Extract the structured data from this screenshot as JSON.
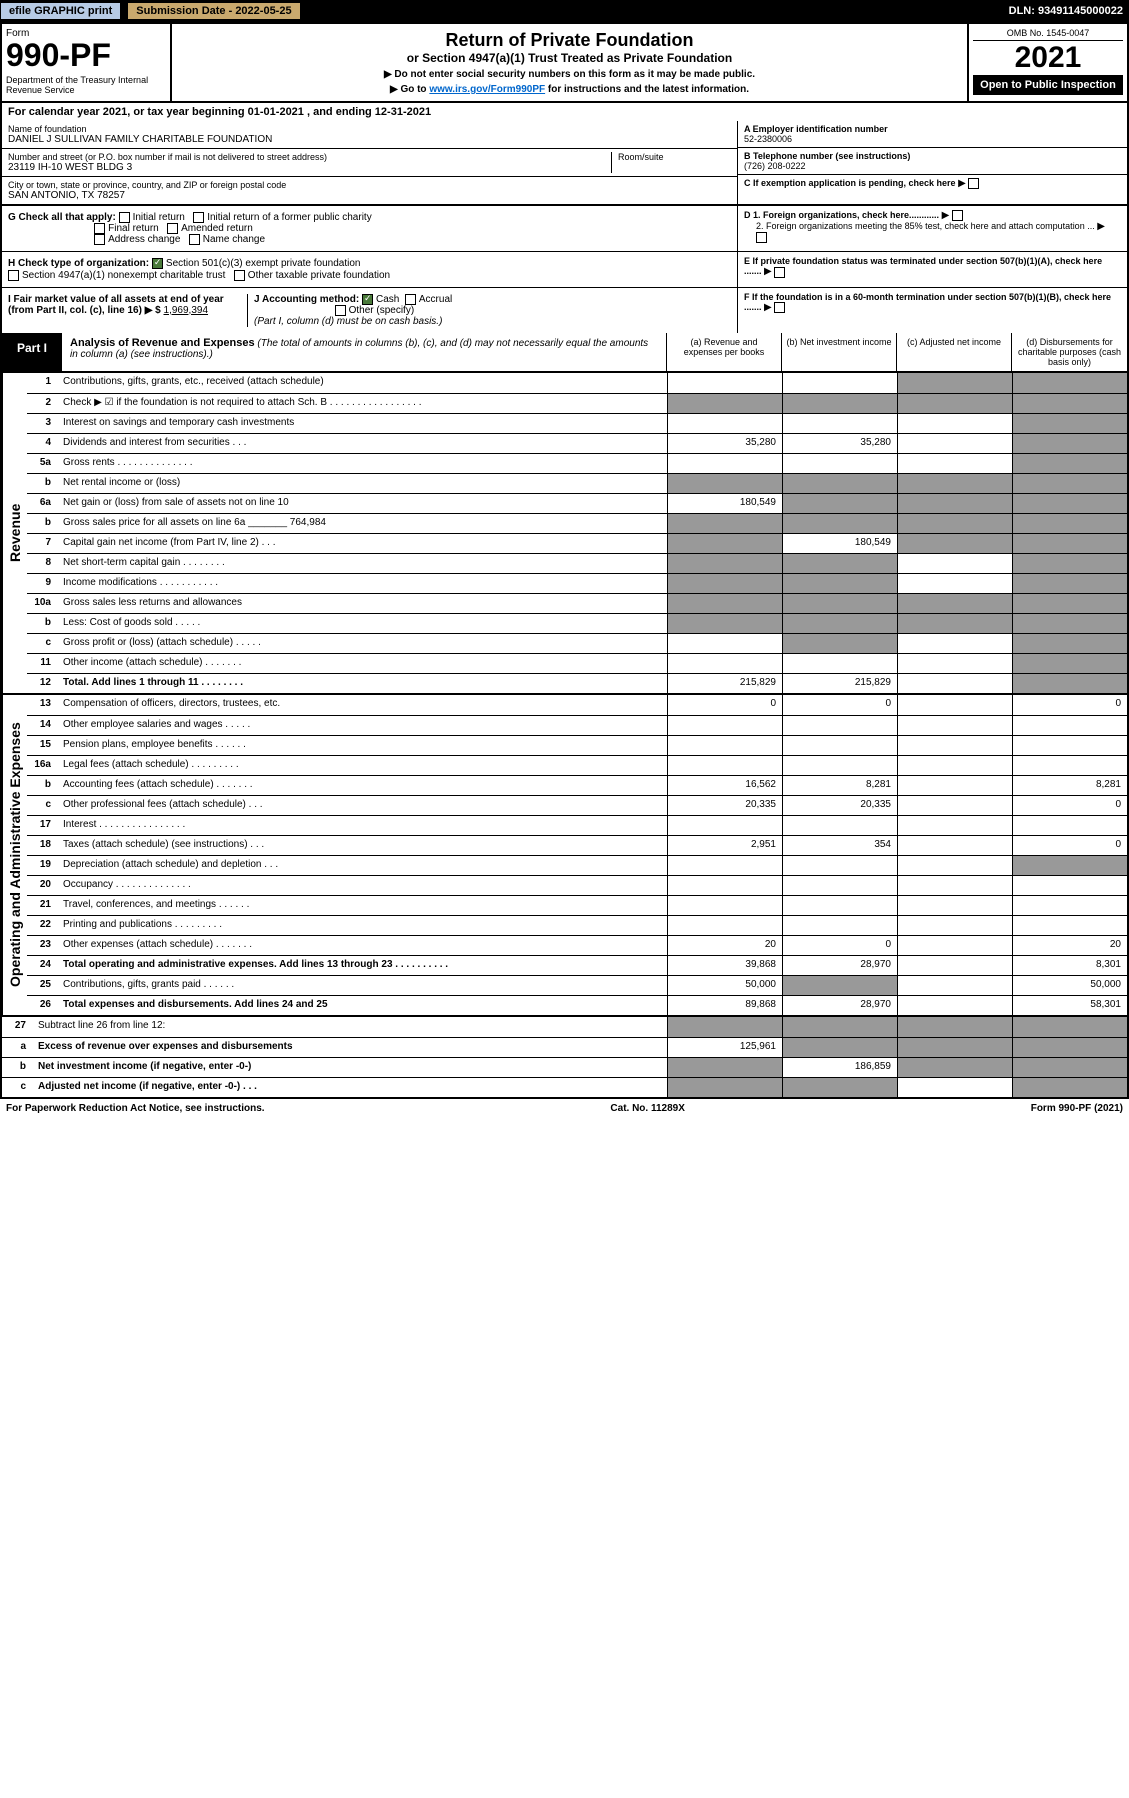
{
  "topbar": {
    "btn1": "efile GRAPHIC print",
    "btn2": "Submission Date - 2022-05-25",
    "dln": "DLN: 93491145000022"
  },
  "header": {
    "form": "Form",
    "formnum": "990-PF",
    "dept": "Department of the Treasury\nInternal Revenue Service",
    "title": "Return of Private Foundation",
    "subtitle": "or Section 4947(a)(1) Trust Treated as Private Foundation",
    "note1": "▶ Do not enter social security numbers on this form as it may be made public.",
    "note2": "▶ Go to ",
    "link": "www.irs.gov/Form990PF",
    "note3": " for instructions and the latest information.",
    "omb": "OMB No. 1545-0047",
    "year": "2021",
    "open": "Open to Public Inspection"
  },
  "cal": "For calendar year 2021, or tax year beginning 01-01-2021          , and ending 12-31-2021",
  "info": {
    "name_lbl": "Name of foundation",
    "name": "DANIEL J SULLIVAN FAMILY CHARITABLE FOUNDATION",
    "addr_lbl": "Number and street (or P.O. box number if mail is not delivered to street address)",
    "addr": "23119 IH-10 WEST BLDG 3",
    "room_lbl": "Room/suite",
    "city_lbl": "City or town, state or province, country, and ZIP or foreign postal code",
    "city": "SAN ANTONIO, TX  78257",
    "ein_lbl": "A Employer identification number",
    "ein": "52-2380006",
    "tel_lbl": "B Telephone number (see instructions)",
    "tel": "(726) 208-0222",
    "c": "C If exemption application is pending, check here",
    "d1": "D 1. Foreign organizations, check here............",
    "d2": "2. Foreign organizations meeting the 85% test, check here and attach computation ...",
    "e": "E If private foundation status was terminated under section 507(b)(1)(A), check here .......",
    "f": "F If the foundation is in a 60-month termination under section 507(b)(1)(B), check here ......."
  },
  "g": {
    "lbl": "G Check all that apply:",
    "o1": "Initial return",
    "o2": "Initial return of a former public charity",
    "o3": "Final return",
    "o4": "Amended return",
    "o5": "Address change",
    "o6": "Name change"
  },
  "h": {
    "lbl": "H Check type of organization:",
    "o1": "Section 501(c)(3) exempt private foundation",
    "o2": "Section 4947(a)(1) nonexempt charitable trust",
    "o3": "Other taxable private foundation"
  },
  "i": {
    "lbl": "I Fair market value of all assets at end of year (from Part II, col. (c), line 16) ▶ $",
    "val": "1,969,394"
  },
  "j": {
    "lbl": "J Accounting method:",
    "o1": "Cash",
    "o2": "Accrual",
    "o3": "Other (specify)",
    "note": "(Part I, column (d) must be on cash basis.)"
  },
  "part1": {
    "lbl": "Part I",
    "title": "Analysis of Revenue and Expenses",
    "sub": "(The total of amounts in columns (b), (c), and (d) may not necessarily equal the amounts in column (a) (see instructions).)",
    "ca": "(a) Revenue and expenses per books",
    "cb": "(b) Net investment income",
    "cc": "(c) Adjusted net income",
    "cd": "(d) Disbursements for charitable purposes (cash basis only)"
  },
  "sidelbl": {
    "rev": "Revenue",
    "exp": "Operating and Administrative Expenses"
  },
  "rows": [
    {
      "n": "1",
      "d": "Contributions, gifts, grants, etc., received (attach schedule)",
      "a": "",
      "b": "",
      "c": "g",
      "dd": "g"
    },
    {
      "n": "2",
      "d": "Check ▶ ☑ if the foundation is not required to attach Sch. B    . . . . . . . . . . . . . . . . .",
      "a": "g",
      "b": "g",
      "c": "g",
      "dd": "g"
    },
    {
      "n": "3",
      "d": "Interest on savings and temporary cash investments",
      "a": "",
      "b": "",
      "c": "",
      "dd": "g"
    },
    {
      "n": "4",
      "d": "Dividends and interest from securities    . . .",
      "a": "35,280",
      "b": "35,280",
      "c": "",
      "dd": "g"
    },
    {
      "n": "5a",
      "d": "Gross rents    . . . . . . . . . . . . . .",
      "a": "",
      "b": "",
      "c": "",
      "dd": "g"
    },
    {
      "n": "b",
      "d": "Net rental income or (loss)",
      "a": "g",
      "b": "g",
      "c": "g",
      "dd": "g"
    },
    {
      "n": "6a",
      "d": "Net gain or (loss) from sale of assets not on line 10",
      "a": "180,549",
      "b": "g",
      "c": "g",
      "dd": "g"
    },
    {
      "n": "b",
      "d": "Gross sales price for all assets on line 6a _______ 764,984",
      "a": "g",
      "b": "g",
      "c": "g",
      "dd": "g"
    },
    {
      "n": "7",
      "d": "Capital gain net income (from Part IV, line 2)    . . .",
      "a": "g",
      "b": "180,549",
      "c": "g",
      "dd": "g"
    },
    {
      "n": "8",
      "d": "Net short-term capital gain    . . . . . . . .",
      "a": "g",
      "b": "g",
      "c": "",
      "dd": "g"
    },
    {
      "n": "9",
      "d": "Income modifications . . . . . . . . . . .",
      "a": "g",
      "b": "g",
      "c": "",
      "dd": "g"
    },
    {
      "n": "10a",
      "d": "Gross sales less returns and allowances",
      "a": "g",
      "b": "g",
      "c": "g",
      "dd": "g"
    },
    {
      "n": "b",
      "d": "Less: Cost of goods sold    . . . . .",
      "a": "g",
      "b": "g",
      "c": "g",
      "dd": "g"
    },
    {
      "n": "c",
      "d": "Gross profit or (loss) (attach schedule)    . . . . .",
      "a": "",
      "b": "g",
      "c": "",
      "dd": "g"
    },
    {
      "n": "11",
      "d": "Other income (attach schedule)    . . . . . . .",
      "a": "",
      "b": "",
      "c": "",
      "dd": "g"
    },
    {
      "n": "12",
      "d": "Total. Add lines 1 through 11    . . . . . . . .",
      "a": "215,829",
      "b": "215,829",
      "c": "",
      "dd": "g",
      "bold": true
    }
  ],
  "exprows": [
    {
      "n": "13",
      "d": "Compensation of officers, directors, trustees, etc.",
      "a": "0",
      "b": "0",
      "c": "",
      "dd": "0"
    },
    {
      "n": "14",
      "d": "Other employee salaries and wages    . . . . .",
      "a": "",
      "b": "",
      "c": "",
      "dd": ""
    },
    {
      "n": "15",
      "d": "Pension plans, employee benefits  . . . . . .",
      "a": "",
      "b": "",
      "c": "",
      "dd": ""
    },
    {
      "n": "16a",
      "d": "Legal fees (attach schedule) . . . . . . . . .",
      "a": "",
      "b": "",
      "c": "",
      "dd": ""
    },
    {
      "n": "b",
      "d": "Accounting fees (attach schedule) . . . . . . .",
      "a": "16,562",
      "b": "8,281",
      "c": "",
      "dd": "8,281"
    },
    {
      "n": "c",
      "d": "Other professional fees (attach schedule)    . . .",
      "a": "20,335",
      "b": "20,335",
      "c": "",
      "dd": "0"
    },
    {
      "n": "17",
      "d": "Interest . . . . . . . . . . . . . . . .",
      "a": "",
      "b": "",
      "c": "",
      "dd": ""
    },
    {
      "n": "18",
      "d": "Taxes (attach schedule) (see instructions)    . . .",
      "a": "2,951",
      "b": "354",
      "c": "",
      "dd": "0"
    },
    {
      "n": "19",
      "d": "Depreciation (attach schedule) and depletion    . . .",
      "a": "",
      "b": "",
      "c": "",
      "dd": "g"
    },
    {
      "n": "20",
      "d": "Occupancy . . . . . . . . . . . . . .",
      "a": "",
      "b": "",
      "c": "",
      "dd": ""
    },
    {
      "n": "21",
      "d": "Travel, conferences, and meetings . . . . . .",
      "a": "",
      "b": "",
      "c": "",
      "dd": ""
    },
    {
      "n": "22",
      "d": "Printing and publications . . . . . . . . .",
      "a": "",
      "b": "",
      "c": "",
      "dd": ""
    },
    {
      "n": "23",
      "d": "Other expenses (attach schedule) . . . . . . .",
      "a": "20",
      "b": "0",
      "c": "",
      "dd": "20"
    },
    {
      "n": "24",
      "d": "Total operating and administrative expenses. Add lines 13 through 23    . . . . . . . . . .",
      "a": "39,868",
      "b": "28,970",
      "c": "",
      "dd": "8,301",
      "bold": true
    },
    {
      "n": "25",
      "d": "Contributions, gifts, grants paid    . . . . . .",
      "a": "50,000",
      "b": "g",
      "c": "",
      "dd": "50,000"
    },
    {
      "n": "26",
      "d": "Total expenses and disbursements. Add lines 24 and 25",
      "a": "89,868",
      "b": "28,970",
      "c": "",
      "dd": "58,301",
      "bold": true
    }
  ],
  "botrows": [
    {
      "n": "27",
      "d": "Subtract line 26 from line 12:",
      "a": "g",
      "b": "g",
      "c": "g",
      "dd": "g"
    },
    {
      "n": "a",
      "d": "Excess of revenue over expenses and disbursements",
      "a": "125,961",
      "b": "g",
      "c": "g",
      "dd": "g",
      "bold": true
    },
    {
      "n": "b",
      "d": "Net investment income (if negative, enter -0-)",
      "a": "g",
      "b": "186,859",
      "c": "g",
      "dd": "g",
      "bold": true
    },
    {
      "n": "c",
      "d": "Adjusted net income (if negative, enter -0-)    . . .",
      "a": "g",
      "b": "g",
      "c": "",
      "dd": "g",
      "bold": true
    }
  ],
  "footer": {
    "l": "For Paperwork Reduction Act Notice, see instructions.",
    "c": "Cat. No. 11289X",
    "r": "Form 990-PF (2021)"
  }
}
